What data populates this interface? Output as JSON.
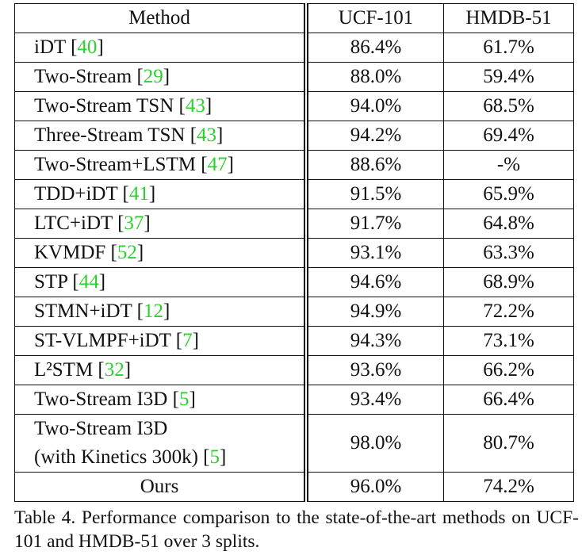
{
  "table": {
    "header": [
      "Method",
      "UCF-101",
      "HMDB-51"
    ],
    "rows": [
      {
        "method": "iDT [40]",
        "ucf": "86.4%",
        "hmdb": "61.7%"
      },
      {
        "method": "Two-Stream [29]",
        "ucf": "88.0%",
        "hmdb": "59.4%"
      },
      {
        "method": "Two-Stream TSN [43]",
        "ucf": "94.0%",
        "hmdb": "68.5%"
      },
      {
        "method": "Three-Stream TSN [43]",
        "ucf": "94.2%",
        "hmdb": "69.4%"
      },
      {
        "method": "Two-Stream+LSTM [47]",
        "ucf": "88.6%",
        "hmdb": "-%"
      },
      {
        "method": "TDD+iDT [41]",
        "ucf": "91.5%",
        "hmdb": "65.9%"
      },
      {
        "method": "LTC+iDT [37]",
        "ucf": "91.7%",
        "hmdb": "64.8%"
      },
      {
        "method": "KVMDF [52]",
        "ucf": "93.1%",
        "hmdb": "63.3%"
      },
      {
        "method": "STP [44]",
        "ucf": "94.6%",
        "hmdb": "68.9%"
      },
      {
        "method": "STMN+iDT [12]",
        "ucf": "94.9%",
        "hmdb": "72.2%"
      },
      {
        "method": "ST-VLMPF+iDT [7]",
        "ucf": "94.3%",
        "hmdb": "73.1%"
      },
      {
        "method": "L²STM [32]",
        "ucf": "93.6%",
        "hmdb": "66.2%"
      },
      {
        "method": "Two-Stream I3D [5]",
        "ucf": "93.4%",
        "hmdb": "66.4%"
      },
      {
        "method": [
          "Two-Stream I3D",
          "(with Kinetics 300k) [5]"
        ],
        "ucf": "98.0%",
        "hmdb": "80.7%"
      },
      {
        "method": "Ours",
        "ucf": "96.0%",
        "hmdb": "74.2%",
        "bold": true
      }
    ],
    "caption": "Table 4. Performance comparison to the state-of-the-art methods on UCF-101 and HMDB-51 over 3 splits."
  }
}
